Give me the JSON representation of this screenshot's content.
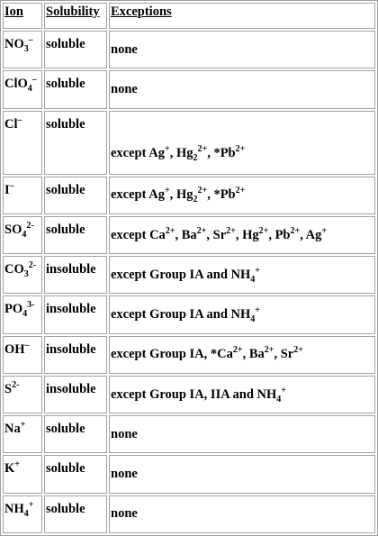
{
  "table": {
    "headers": [
      "Ion",
      "Solubility",
      "Exceptions"
    ],
    "rows": [
      {
        "ion": "NO3–",
        "solubility": "soluble",
        "exceptions": "none"
      },
      {
        "ion": "ClO4–",
        "solubility": "soluble",
        "exceptions": "none"
      },
      {
        "ion": "Cl–",
        "solubility": "soluble",
        "exceptions": "except Ag+, Hg22+, *Pb2+"
      },
      {
        "ion": "I–",
        "solubility": "soluble",
        "exceptions": "except Ag+, Hg22+, *Pb2+"
      },
      {
        "ion": "SO42-",
        "solubility": "soluble",
        "exceptions": "except Ca2+, Ba2+, Sr2+, Hg2+, Pb2+, Ag+"
      },
      {
        "ion": "CO32-",
        "solubility": "insoluble",
        "exceptions": "except Group IA and NH4+"
      },
      {
        "ion": "PO43-",
        "solubility": "insoluble",
        "exceptions": "except Group IA and NH4+"
      },
      {
        "ion": "OH–",
        "solubility": "insoluble",
        "exceptions": "except Group IA, *Ca2+, Ba2+, Sr2+"
      },
      {
        "ion": "S2-",
        "solubility": "insoluble",
        "exceptions": "except Group IA, IIA and NH4+"
      },
      {
        "ion": "Na+",
        "solubility": "soluble",
        "exceptions": "none"
      },
      {
        "ion": "K+",
        "solubility": "soluble",
        "exceptions": "none"
      },
      {
        "ion": "NH4+",
        "solubility": "soluble",
        "exceptions": "none"
      }
    ]
  }
}
